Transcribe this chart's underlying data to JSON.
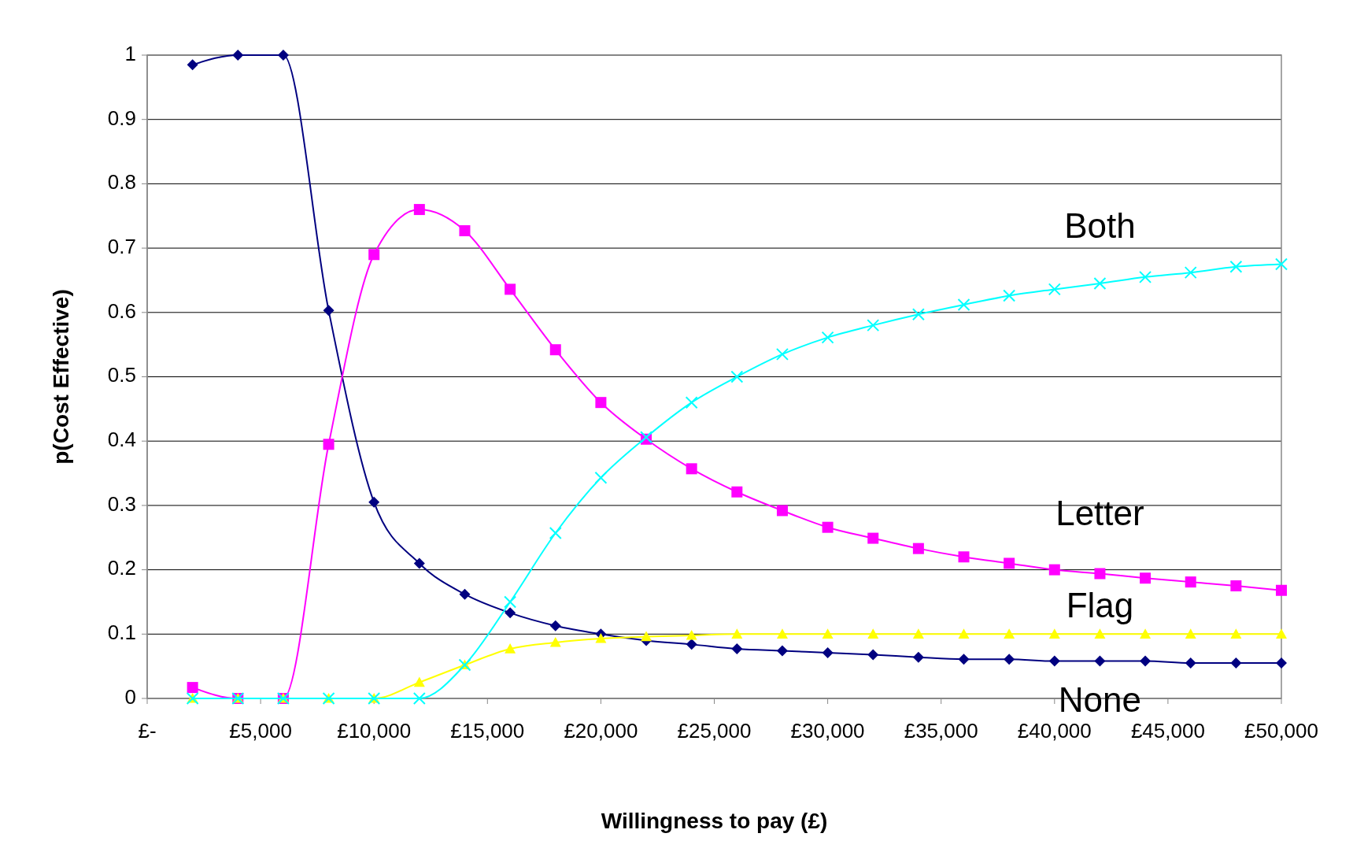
{
  "chart_data": {
    "type": "line",
    "xlabel": "Willingness to pay (£)",
    "ylabel": "p(Cost Effective)",
    "x": [
      2000,
      4000,
      6000,
      8000,
      10000,
      12000,
      14000,
      16000,
      18000,
      20000,
      22000,
      24000,
      26000,
      28000,
      30000,
      32000,
      34000,
      36000,
      38000,
      40000,
      42000,
      44000,
      46000,
      48000,
      50000
    ],
    "xlim": [
      0,
      50000
    ],
    "xticks": [
      {
        "value": 0,
        "label": "£-"
      },
      {
        "value": 5000,
        "label": "£5,000"
      },
      {
        "value": 10000,
        "label": "£10,000"
      },
      {
        "value": 15000,
        "label": "£15,000"
      },
      {
        "value": 20000,
        "label": "£20,000"
      },
      {
        "value": 25000,
        "label": "£25,000"
      },
      {
        "value": 30000,
        "label": "£30,000"
      },
      {
        "value": 35000,
        "label": "£35,000"
      },
      {
        "value": 40000,
        "label": "£40,000"
      },
      {
        "value": 45000,
        "label": "£45,000"
      },
      {
        "value": 50000,
        "label": "£50,000"
      }
    ],
    "ylim": [
      0,
      1
    ],
    "yticks": [
      0,
      0.1,
      0.2,
      0.3,
      0.4,
      0.5,
      0.6,
      0.7,
      0.8,
      0.9,
      1
    ],
    "grid": "y",
    "series": [
      {
        "name": "None",
        "color": "#000080",
        "marker": "diamond",
        "values": [
          0.985,
          1,
          1,
          0.603,
          0.305,
          0.21,
          0.162,
          0.133,
          0.113,
          0.1,
          0.09,
          0.084,
          0.077,
          0.074,
          0.071,
          0.068,
          0.064,
          0.061,
          0.061,
          0.058,
          0.058,
          0.058,
          0.055,
          0.055,
          0.055
        ]
      },
      {
        "name": "Letter",
        "color": "#ff00ff",
        "marker": "square",
        "values": [
          0.017,
          0,
          0,
          0.395,
          0.69,
          0.76,
          0.727,
          0.636,
          0.542,
          0.46,
          0.403,
          0.357,
          0.321,
          0.292,
          0.266,
          0.249,
          0.233,
          0.22,
          0.21,
          0.2,
          0.194,
          0.187,
          0.181,
          0.175,
          0.168
        ]
      },
      {
        "name": "Flag",
        "color": "#ffff00",
        "marker": "triangle",
        "values": [
          0,
          0,
          0,
          0,
          0,
          0.025,
          0.052,
          0.077,
          0.087,
          0.093,
          0.096,
          0.098,
          0.1,
          0.1,
          0.1,
          0.1,
          0.1,
          0.1,
          0.1,
          0.1,
          0.1,
          0.1,
          0.1,
          0.1,
          0.1
        ]
      },
      {
        "name": "Both",
        "color": "#00ffff",
        "marker": "cross",
        "values": [
          0,
          0,
          0,
          0,
          0,
          0,
          0.052,
          0.15,
          0.257,
          0.343,
          0.406,
          0.46,
          0.5,
          0.535,
          0.561,
          0.58,
          0.597,
          0.612,
          0.626,
          0.636,
          0.645,
          0.655,
          0.662,
          0.671,
          0.675
        ]
      }
    ]
  }
}
